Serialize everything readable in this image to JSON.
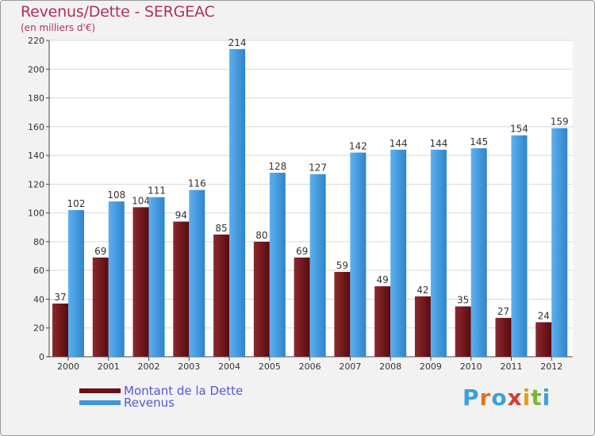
{
  "title": "Revenus/Dette - SERGEAC",
  "subtitle": "(en milliers d'€)",
  "logo": {
    "letters": [
      "P",
      "r",
      "o",
      "x",
      "i",
      "t",
      "i"
    ],
    "colors": [
      "#3aa0e0",
      "#e0731e",
      "#3aa0e0",
      "#d93a2e",
      "#e0a01e",
      "#7ab833",
      "#3aa0e0"
    ]
  },
  "legend": [
    {
      "label": "Montant de la Dette",
      "color": "#6b0f14"
    },
    {
      "label": "Revenus",
      "color": "#3d95db"
    }
  ],
  "chart_data": {
    "type": "bar",
    "title": "Revenus/Dette - SERGEAC",
    "ylabel": "(en milliers d'€)",
    "categories": [
      "2000",
      "2001",
      "2002",
      "2003",
      "2004",
      "2005",
      "2006",
      "2007",
      "2008",
      "2009",
      "2010",
      "2011",
      "2012"
    ],
    "series": [
      {
        "name": "Montant de la Dette",
        "color": "#6b0f14",
        "values": [
          37,
          69,
          104,
          94,
          85,
          80,
          69,
          59,
          49,
          42,
          35,
          27,
          24
        ]
      },
      {
        "name": "Revenus",
        "color": "#3d95db",
        "values": [
          102,
          108,
          111,
          116,
          214,
          128,
          127,
          142,
          144,
          144,
          145,
          154,
          159
        ]
      }
    ],
    "ylim": [
      0,
      220
    ],
    "yticks": [
      0,
      20,
      40,
      60,
      80,
      100,
      120,
      140,
      160,
      180,
      200,
      220
    ],
    "grid": true
  }
}
